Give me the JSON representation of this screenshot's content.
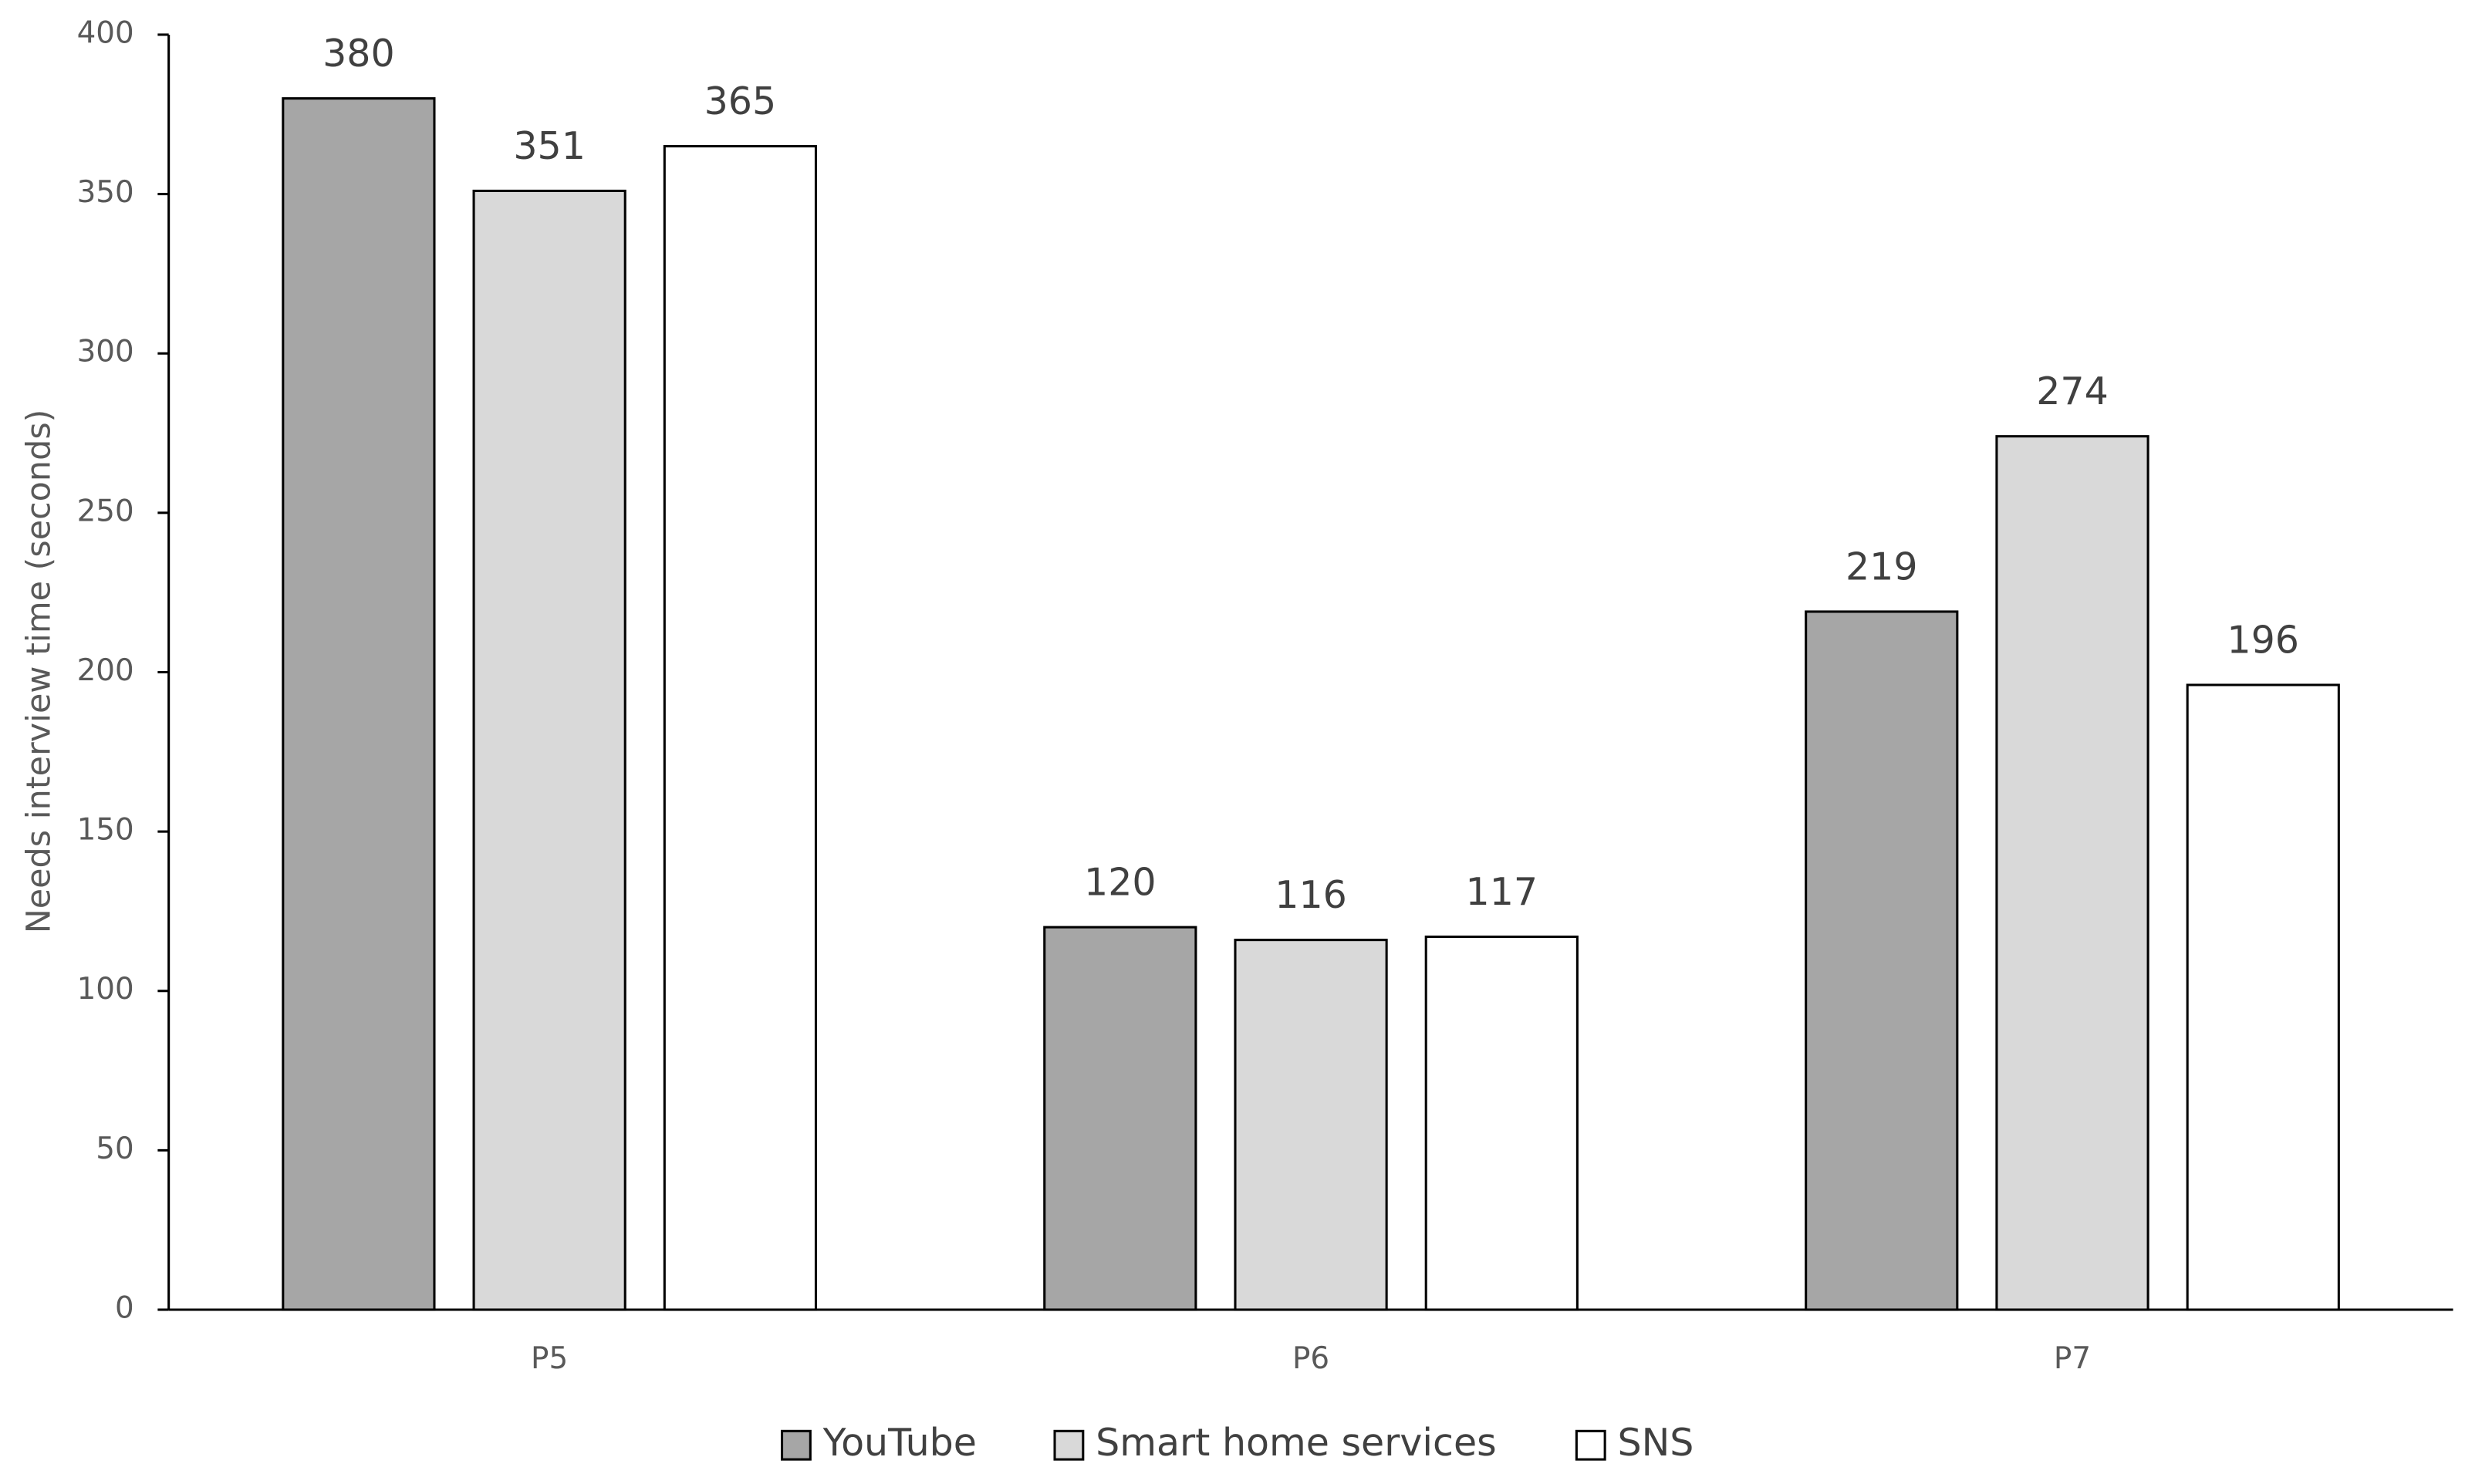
{
  "chart_data": {
    "type": "bar",
    "y_label": "Needs interview time (seconds)",
    "categories": [
      "P5",
      "P6",
      "P7"
    ],
    "series": [
      {
        "name": "YouTube",
        "color": "#a6a6a6",
        "values": [
          380,
          120,
          219
        ]
      },
      {
        "name": "Smart home services",
        "color": "#d9d9d9",
        "values": [
          351,
          116,
          274
        ]
      },
      {
        "name": "SNS",
        "color": "#ffffff",
        "values": [
          365,
          117,
          196
        ]
      }
    ],
    "ylim": [
      0,
      400
    ],
    "yticks": [
      0,
      50,
      100,
      150,
      200,
      250,
      300,
      350,
      400
    ],
    "grid": false,
    "legend": "bottom"
  }
}
